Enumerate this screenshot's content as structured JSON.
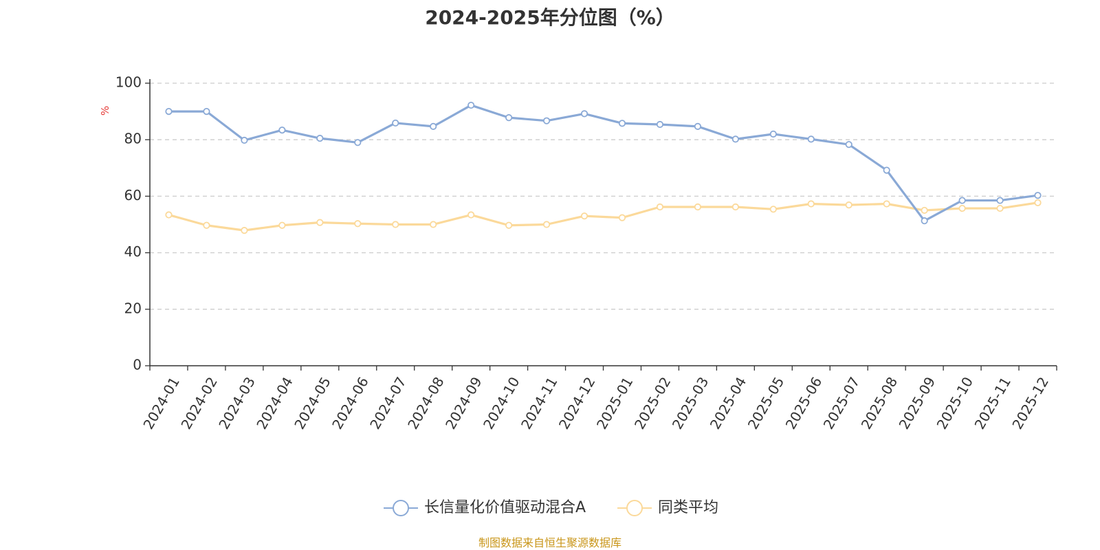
{
  "chart_data": {
    "type": "line",
    "title": "2024-2025年分位图（%）",
    "ylabel": "%",
    "xlabel": "",
    "ylim": [
      0,
      100
    ],
    "yticks": [
      0,
      20,
      40,
      60,
      80,
      100
    ],
    "grid": "horizontal-dashed",
    "legend_position": "bottom-center",
    "x": [
      "2024-01",
      "2024-02",
      "2024-03",
      "2024-04",
      "2024-05",
      "2024-06",
      "2024-07",
      "2024-08",
      "2024-09",
      "2024-10",
      "2024-11",
      "2024-12",
      "2025-01",
      "2025-02",
      "2025-03",
      "2025-04",
      "2025-05",
      "2025-06",
      "2025-07",
      "2025-08",
      "2025-09",
      "2025-10",
      "2025-11",
      "2025-12"
    ],
    "series": [
      {
        "name": "长信量化价值驱动混合A",
        "color": "#8aa9d6",
        "values": [
          90.0,
          90.0,
          79.8,
          83.4,
          80.5,
          79.0,
          85.9,
          84.7,
          92.2,
          87.8,
          86.7,
          89.2,
          85.8,
          85.4,
          84.7,
          80.2,
          82.0,
          80.2,
          78.3,
          69.2,
          51.3,
          58.5,
          58.5,
          60.3
        ]
      },
      {
        "name": "同类平均",
        "color": "#fbd99a",
        "values": [
          53.4,
          49.7,
          47.9,
          49.7,
          50.7,
          50.3,
          50.0,
          50.0,
          53.4,
          49.7,
          50.0,
          53.0,
          52.4,
          56.2,
          56.2,
          56.2,
          55.4,
          57.3,
          56.9,
          57.3,
          55.0,
          55.7,
          55.7,
          57.7
        ]
      }
    ]
  },
  "footer": {
    "source_note": "制图数据来自恒生聚源数据库"
  }
}
